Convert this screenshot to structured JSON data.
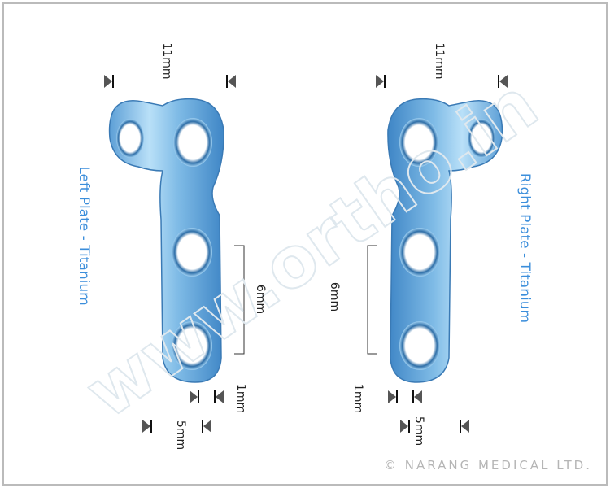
{
  "plates": [
    {
      "label": "Left Plate - Titanium",
      "top": "11mm",
      "middle": "6mm",
      "gap": "1mm",
      "bottom": "5mm"
    },
    {
      "label": "Right Plate - Titanium",
      "top": "11mm",
      "middle": "6mm",
      "gap": "1mm",
      "bottom": "5mm"
    }
  ],
  "watermark": "www.ortho.in",
  "copyright": "© NARANG MEDICAL LTD."
}
